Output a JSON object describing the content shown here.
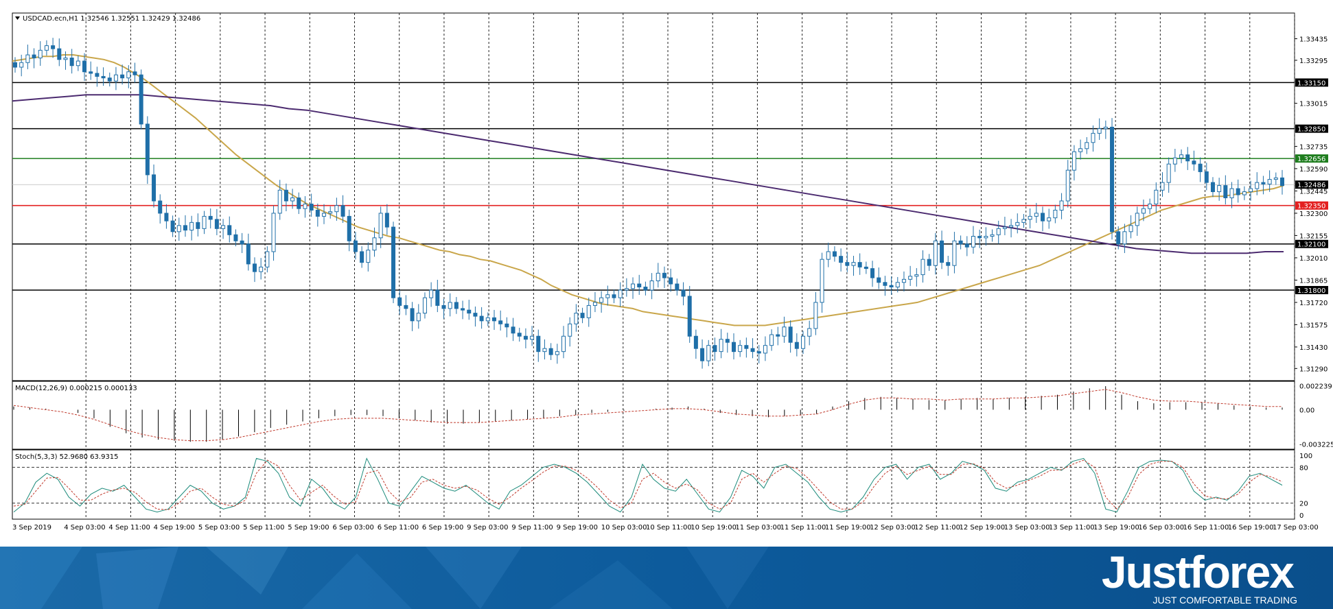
{
  "chart_data": [
    {
      "type": "candlestick",
      "title": "USDCAD.ecn,H1  1.32546 1.32551 1.32429 1.32486",
      "symbol": "USDCAD.ecn,H1",
      "ohlc_header": [
        "1.32546",
        "1.32551",
        "1.32429",
        "1.32486"
      ],
      "ylim": [
        1.3122,
        1.3358
      ],
      "y_ticks": [
        "1.33435",
        "1.33295",
        "1.33015",
        "1.32735",
        "1.32590",
        "1.32445",
        "1.32300",
        "1.32155",
        "1.32010",
        "1.31865",
        "1.31720",
        "1.31575",
        "1.31430",
        "1.31290"
      ],
      "x_ticks": [
        "3 Sep 2019",
        "4 Sep 03:00",
        "4 Sep 11:00",
        "4 Sep 19:00",
        "5 Sep 03:00",
        "5 Sep 11:00",
        "5 Sep 19:00",
        "6 Sep 03:00",
        "6 Sep 11:00",
        "6 Sep 19:00",
        "9 Sep 03:00",
        "9 Sep 11:00",
        "9 Sep 19:00",
        "10 Sep 03:00",
        "10 Sep 11:00",
        "10 Sep 19:00",
        "11 Sep 03:00",
        "11 Sep 11:00",
        "11 Sep 19:00",
        "12 Sep 03:00",
        "12 Sep 11:00",
        "12 Sep 19:00",
        "13 Sep 03:00",
        "13 Sep 11:00",
        "13 Sep 19:00",
        "16 Sep 03:00",
        "16 Sep 11:00",
        "16 Sep 19:00",
        "17 Sep 03:00"
      ],
      "horizontal_levels": [
        {
          "value": 1.3315,
          "label": "1.33150",
          "color": "#000000"
        },
        {
          "value": 1.3285,
          "label": "1.32850",
          "color": "#000000"
        },
        {
          "value": 1.32656,
          "label": "1.32656",
          "color": "#1e7d1e"
        },
        {
          "value": 1.32486,
          "label": "1.32486",
          "color": "#000000"
        },
        {
          "value": 1.3235,
          "label": "1.32350",
          "color": "#e32020"
        },
        {
          "value": 1.321,
          "label": "1.32100",
          "color": "#000000"
        },
        {
          "value": 1.318,
          "label": "1.31800",
          "color": "#000000"
        }
      ],
      "series": [
        {
          "kind": "close",
          "close": [
            1.3325,
            1.3328,
            1.3333,
            1.3331,
            1.3336,
            1.3339,
            1.3337,
            1.333,
            1.3331,
            1.3326,
            1.3329,
            1.3322,
            1.3321,
            1.3319,
            1.3318,
            1.3316,
            1.332,
            1.3318,
            1.3322,
            1.332,
            1.3288,
            1.3255,
            1.3238,
            1.323,
            1.3225,
            1.3218,
            1.3222,
            1.3219,
            1.3224,
            1.322,
            1.3228,
            1.3226,
            1.322,
            1.3222,
            1.3216,
            1.3212,
            1.321,
            1.3197,
            1.3192,
            1.3195,
            1.3205,
            1.323,
            1.3245,
            1.3238,
            1.324,
            1.3233,
            1.3236,
            1.3232,
            1.3228,
            1.323,
            1.3231,
            1.3235,
            1.3228,
            1.3212,
            1.3205,
            1.3198,
            1.3206,
            1.3214,
            1.323,
            1.3221,
            1.3175,
            1.317,
            1.3168,
            1.316,
            1.3165,
            1.3175,
            1.318,
            1.317,
            1.3168,
            1.3172,
            1.3168,
            1.3167,
            1.3165,
            1.3163,
            1.316,
            1.3162,
            1.316,
            1.3158,
            1.3156,
            1.3152,
            1.315,
            1.3148,
            1.315,
            1.314,
            1.3142,
            1.3138,
            1.314,
            1.315,
            1.3158,
            1.3165,
            1.3162,
            1.317,
            1.3172,
            1.3175,
            1.3177,
            1.3175,
            1.318,
            1.3181,
            1.3184,
            1.3182,
            1.318,
            1.3186,
            1.3191,
            1.3188,
            1.3184,
            1.318,
            1.3176,
            1.315,
            1.3142,
            1.3134,
            1.3144,
            1.314,
            1.3148,
            1.3146,
            1.314,
            1.3144,
            1.3142,
            1.314,
            1.3139,
            1.3144,
            1.3151,
            1.315,
            1.3156,
            1.3146,
            1.3142,
            1.315,
            1.3155,
            1.3172,
            1.32,
            1.3205,
            1.3202,
            1.3198,
            1.3196,
            1.3198,
            1.3195,
            1.3194,
            1.3188,
            1.3185,
            1.3183,
            1.3182,
            1.3185,
            1.3187,
            1.3189,
            1.319,
            1.32,
            1.3196,
            1.3212,
            1.3198,
            1.3196,
            1.3212,
            1.321,
            1.3208,
            1.3215,
            1.3214,
            1.3215,
            1.3216,
            1.322,
            1.3221,
            1.3222,
            1.3224,
            1.3226,
            1.3228,
            1.323,
            1.3225,
            1.3227,
            1.3232,
            1.3238,
            1.3258,
            1.327,
            1.3272,
            1.3276,
            1.3282,
            1.3285,
            1.3286,
            1.3218,
            1.321,
            1.3218,
            1.3222,
            1.323,
            1.3233,
            1.3236,
            1.3245,
            1.325,
            1.3262,
            1.3266,
            1.3268,
            1.3264,
            1.3262,
            1.3257,
            1.325,
            1.3244,
            1.3248,
            1.324,
            1.3246,
            1.3242,
            1.3244,
            1.3246,
            1.325,
            1.3249,
            1.3252,
            1.3253,
            1.3248
          ]
        },
        {
          "kind": "ma",
          "name": "",
          "color": "#c9a64a",
          "values": [
            1.3329,
            1.333,
            1.3331,
            1.3332,
            1.3332,
            1.3333,
            1.3333,
            1.3332,
            1.3331,
            1.333,
            1.3328,
            1.3325,
            1.3321,
            1.3317,
            1.3312,
            1.3307,
            1.3302,
            1.3297,
            1.3292,
            1.3286,
            1.328,
            1.3274,
            1.3268,
            1.3263,
            1.3258,
            1.3253,
            1.3248,
            1.3244,
            1.324,
            1.3236,
            1.3233,
            1.323,
            1.3227,
            1.3224,
            1.3221,
            1.3219,
            1.3217,
            1.3215,
            1.3214,
            1.3212,
            1.321,
            1.3208,
            1.3206,
            1.3205,
            1.3203,
            1.3202,
            1.32,
            1.3199,
            1.3197,
            1.3195,
            1.3193,
            1.319,
            1.3187,
            1.3183,
            1.318,
            1.3177,
            1.3175,
            1.3173,
            1.3171,
            1.317,
            1.3169,
            1.3168,
            1.3166,
            1.3165,
            1.3164,
            1.3163,
            1.3162,
            1.3161,
            1.316,
            1.3159,
            1.3158,
            1.3157,
            1.3157,
            1.3157,
            1.3157,
            1.3158,
            1.3159,
            1.316,
            1.3161,
            1.3162,
            1.3163,
            1.3164,
            1.3165,
            1.3166,
            1.3167,
            1.3168,
            1.3169,
            1.317,
            1.3171,
            1.3172,
            1.3174,
            1.3176,
            1.3178,
            1.318,
            1.3182,
            1.3184,
            1.3186,
            1.3188,
            1.319,
            1.3192,
            1.3194,
            1.3196,
            1.3199,
            1.3202,
            1.3205,
            1.3208,
            1.3211,
            1.3214,
            1.3217,
            1.322,
            1.3223,
            1.3226,
            1.3229,
            1.3232,
            1.3234,
            1.3236,
            1.3238,
            1.324,
            1.3241,
            1.3241,
            1.3242,
            1.3243,
            1.3244,
            1.3245,
            1.3246,
            1.3248
          ]
        },
        {
          "kind": "ma",
          "name": "",
          "color": "#4b2a6f",
          "values": [
            1.3303,
            1.3304,
            1.3305,
            1.3306,
            1.3307,
            1.3307,
            1.3307,
            1.3307,
            1.3306,
            1.3305,
            1.3304,
            1.3303,
            1.3302,
            1.3301,
            1.33,
            1.3298,
            1.3297,
            1.3295,
            1.3293,
            1.3291,
            1.3289,
            1.3287,
            1.3285,
            1.3283,
            1.3281,
            1.3279,
            1.3277,
            1.3275,
            1.3273,
            1.3271,
            1.3269,
            1.3267,
            1.3265,
            1.3263,
            1.3261,
            1.3259,
            1.3257,
            1.3255,
            1.3253,
            1.3251,
            1.3249,
            1.3247,
            1.3245,
            1.3243,
            1.3241,
            1.3239,
            1.3237,
            1.3235,
            1.3233,
            1.3231,
            1.3229,
            1.3227,
            1.3225,
            1.3223,
            1.3221,
            1.3219,
            1.3217,
            1.3215,
            1.3213,
            1.3211,
            1.3209,
            1.3207,
            1.3206,
            1.3205,
            1.3204,
            1.3204,
            1.3204,
            1.3204,
            1.3205,
            1.3205
          ]
        }
      ]
    },
    {
      "type": "line",
      "title": "MACD(12,26,9) 0.000215 0.000133",
      "y_ticks": [
        "0.002239",
        "0.00",
        "-0.003225"
      ],
      "ylim": [
        -0.0035,
        0.0024
      ],
      "series": [
        {
          "kind": "histogram",
          "values": [
            0.0003,
            0.0002,
            0.0001,
            0,
            -0.0003,
            -0.0008,
            -0.0016,
            -0.0022,
            -0.0026,
            -0.0028,
            -0.0029,
            -0.003,
            -0.003,
            -0.0028,
            -0.0025,
            -0.0021,
            -0.0017,
            -0.0014,
            -0.0011,
            -0.0008,
            -0.0006,
            -0.0005,
            -0.0005,
            -0.0006,
            -0.0008,
            -0.001,
            -0.0012,
            -0.0013,
            -0.0013,
            -0.0012,
            -0.0011,
            -0.001,
            -0.0009,
            -0.0008,
            -0.0006,
            -0.0005,
            -0.0003,
            -0.0002,
            -0.0001,
            0.0,
            0.0001,
            0.0002,
            0.0003,
            0.0001,
            -0.0003,
            -0.0005,
            -0.0006,
            -0.0007,
            -0.0006,
            -0.0005,
            -0.0004,
            0.0003,
            0.0008,
            0.0011,
            0.0012,
            0.0011,
            0.001,
            0.0009,
            0.0009,
            0.001,
            0.0011,
            0.001,
            0.0011,
            0.0012,
            0.0013,
            0.0014,
            0.0017,
            0.002,
            0.0022,
            0.0014,
            0.0008,
            0.0006,
            0.0007,
            0.0007,
            0.0007,
            0.0006,
            0.0004,
            0.0003,
            0.0002,
            0.0002
          ]
        },
        {
          "kind": "signal",
          "color": "#c0392b",
          "values": [
            0.0004,
            0.0002,
            0.0,
            -0.0002,
            -0.0005,
            -0.0009,
            -0.0014,
            -0.0019,
            -0.0023,
            -0.0026,
            -0.0028,
            -0.0029,
            -0.0029,
            -0.0028,
            -0.0026,
            -0.0023,
            -0.002,
            -0.0017,
            -0.0014,
            -0.0011,
            -0.0009,
            -0.0008,
            -0.0008,
            -0.0008,
            -0.0009,
            -0.001,
            -0.0011,
            -0.0012,
            -0.0012,
            -0.0012,
            -0.0011,
            -0.001,
            -0.0009,
            -0.0008,
            -0.0007,
            -0.0005,
            -0.0004,
            -0.0003,
            -0.0002,
            -0.0001,
            0.0,
            0.0001,
            0.0001,
            0.0,
            -0.0002,
            -0.0004,
            -0.0005,
            -0.0006,
            -0.0006,
            -0.0005,
            -0.0004,
            0.0,
            0.0005,
            0.0009,
            0.0011,
            0.0011,
            0.001,
            0.001,
            0.0009,
            0.001,
            0.001,
            0.001,
            0.0011,
            0.0011,
            0.0012,
            0.0013,
            0.0015,
            0.0017,
            0.0019,
            0.0016,
            0.0012,
            0.0009,
            0.0008,
            0.0008,
            0.0007,
            0.0006,
            0.0005,
            0.0004,
            0.0003,
            0.0003
          ]
        }
      ]
    },
    {
      "type": "line",
      "title": "Stoch(5,3,3) 52.9680 63.9315",
      "y_ticks": [
        "100",
        "80",
        "20",
        "0"
      ],
      "ylim": [
        0,
        100
      ],
      "levels": [
        80,
        20
      ],
      "series": [
        {
          "kind": "main",
          "color": "#1a8a7a",
          "values": [
            5,
            20,
            55,
            70,
            60,
            30,
            15,
            35,
            45,
            40,
            50,
            30,
            10,
            5,
            10,
            30,
            50,
            40,
            20,
            10,
            15,
            30,
            95,
            90,
            70,
            30,
            15,
            60,
            45,
            20,
            10,
            30,
            95,
            60,
            20,
            15,
            40,
            65,
            55,
            45,
            40,
            50,
            35,
            20,
            10,
            40,
            50,
            65,
            80,
            85,
            80,
            70,
            55,
            35,
            15,
            5,
            30,
            85,
            60,
            45,
            40,
            60,
            35,
            10,
            5,
            30,
            75,
            65,
            45,
            80,
            85,
            70,
            55,
            30,
            10,
            5,
            10,
            30,
            60,
            80,
            85,
            60,
            80,
            85,
            60,
            70,
            90,
            85,
            75,
            45,
            40,
            55,
            60,
            70,
            80,
            75,
            90,
            95,
            70,
            10,
            5,
            40,
            80,
            90,
            92,
            90,
            75,
            40,
            25,
            30,
            25,
            40,
            65,
            70,
            60,
            50
          ]
        },
        {
          "kind": "signal",
          "color": "#c0392b",
          "values": [
            15,
            18,
            40,
            62,
            63,
            45,
            25,
            25,
            35,
            42,
            45,
            38,
            22,
            10,
            9,
            20,
            40,
            45,
            30,
            18,
            15,
            25,
            70,
            92,
            82,
            50,
            25,
            38,
            50,
            32,
            18,
            22,
            70,
            75,
            40,
            22,
            30,
            55,
            60,
            50,
            45,
            48,
            42,
            28,
            18,
            30,
            45,
            58,
            72,
            82,
            82,
            75,
            62,
            45,
            25,
            12,
            20,
            60,
            70,
            55,
            45,
            52,
            42,
            20,
            10,
            20,
            60,
            70,
            55,
            70,
            82,
            78,
            62,
            42,
            22,
            10,
            10,
            22,
            48,
            70,
            82,
            68,
            75,
            82,
            68,
            68,
            85,
            86,
            78,
            55,
            45,
            50,
            58,
            65,
            75,
            76,
            85,
            92,
            80,
            30,
            10,
            30,
            68,
            85,
            90,
            90,
            80,
            52,
            32,
            28,
            27,
            35,
            55,
            68,
            64,
            56
          ]
        }
      ]
    }
  ],
  "branding": {
    "logo_text": "Justforex",
    "tagline": "JUST COMFORTABLE TRADING"
  }
}
